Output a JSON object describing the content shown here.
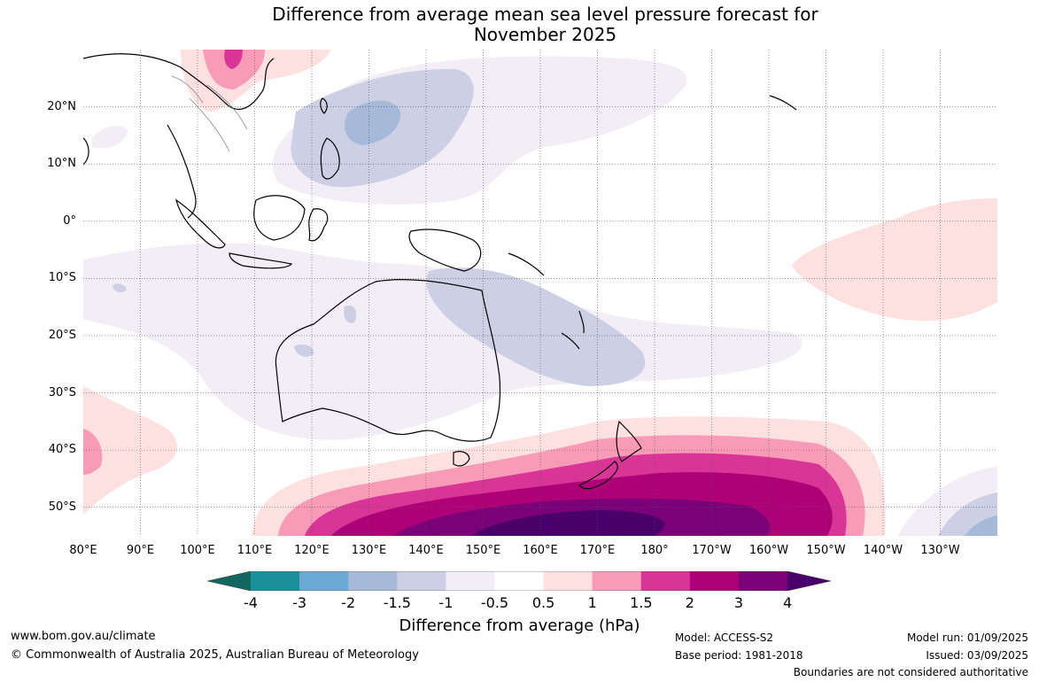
{
  "title_line1": "Difference from average mean sea level pressure forecast for",
  "title_line2": "November 2025",
  "lat_labels": [
    "20°N",
    "10°N",
    "0°",
    "10°S",
    "20°S",
    "30°S",
    "40°S",
    "50°S"
  ],
  "lon_labels": [
    "80°E",
    "90°E",
    "100°E",
    "110°E",
    "120°E",
    "130°E",
    "140°E",
    "150°E",
    "160°E",
    "170°E",
    "180°",
    "170°W",
    "160°W",
    "150°W",
    "140°W",
    "130°W"
  ],
  "map_extent": {
    "lon_min": 80,
    "lon_max": 240,
    "lat_min": -55,
    "lat_max": 30
  },
  "colorbar": {
    "label": "Difference from average (hPa)",
    "ticks": [
      "-4",
      "-3",
      "-2",
      "-1.5",
      "-1",
      "-0.5",
      "0.5",
      "1",
      "1.5",
      "2",
      "3",
      "4"
    ],
    "colors": [
      "#11665f",
      "#1a9098",
      "#6aaad4",
      "#a6b9d8",
      "#cdd0e5",
      "#f3edf6",
      "#ffffff",
      "#fde0e0",
      "#f89bb8",
      "#d93596",
      "#ae0178",
      "#7a0177",
      "#49006a"
    ]
  },
  "footer": {
    "website": "www.bom.gov.au/climate",
    "copyright": "© Commonwealth of Australia 2025, Australian Bureau of Meteorology",
    "model": "Model: ACCESS-S2",
    "base_period": "Base period: 1981-2018",
    "model_run": "Model run: 01/09/2025",
    "issued": "Issued: 03/09/2025",
    "disclaimer": "Boundaries are not considered authoritative"
  }
}
